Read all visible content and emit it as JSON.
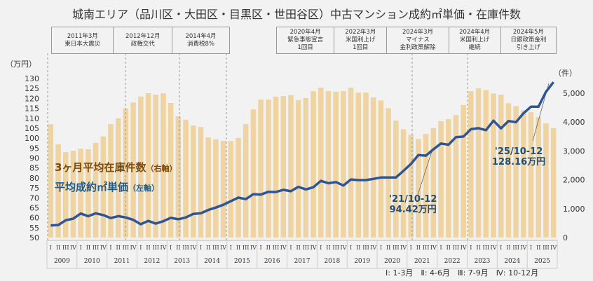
{
  "chart_data": {
    "type": "bar+line",
    "title": "城南エリア（品川区・大田区・目黒区・世田谷区）中古マンション成約㎡単価・在庫件数",
    "years": [
      "2009",
      "2010",
      "2011",
      "2012",
      "2013",
      "2014",
      "2015",
      "2016",
      "2017",
      "2018",
      "2019",
      "2020",
      "2021",
      "2022",
      "2023",
      "2024",
      "2025"
    ],
    "quarter_labels": [
      "I",
      "II",
      "III",
      "IV"
    ],
    "left_axis": {
      "unit": "（万円）",
      "ylim": [
        50,
        130
      ],
      "ticks": [
        50,
        55,
        60,
        65,
        70,
        75,
        80,
        85,
        90,
        95,
        100,
        105,
        110,
        115,
        120,
        125,
        130
      ]
    },
    "right_axis": {
      "unit": "（件）",
      "ylim": [
        0,
        5500
      ],
      "ticks": [
        "0",
        "1,000",
        "2,000",
        "3,000",
        "4,000",
        "5,000"
      ],
      "tick_values": [
        0,
        1000,
        2000,
        3000,
        4000,
        5000
      ]
    },
    "series": [
      {
        "name": "3ヶ月平均在庫件数",
        "axis_note": "（右軸）",
        "kind": "bar",
        "color": "#efd3a0",
        "values": [
          3930,
          3230,
          2960,
          3010,
          3080,
          3060,
          3280,
          3500,
          3930,
          4130,
          4470,
          4680,
          4880,
          5000,
          4950,
          5000,
          4660,
          4200,
          4080,
          3880,
          3830,
          3470,
          3400,
          3350,
          3350,
          3450,
          3930,
          4440,
          4780,
          4780,
          4880,
          4900,
          4930,
          4760,
          4830,
          5070,
          5190,
          5070,
          5050,
          5070,
          5190,
          5020,
          5020,
          4850,
          4750,
          4480,
          4050,
          3750,
          3560,
          3410,
          3590,
          3790,
          4030,
          4100,
          4240,
          4590,
          5070,
          5170,
          5110,
          4990,
          4950,
          4650,
          4550,
          4410,
          4340,
          4170,
          3950,
          3790
        ]
      },
      {
        "name": "平均成約㎡単価",
        "axis_note": "（左軸）",
        "kind": "line",
        "color": "#2f5597",
        "values": [
          56.1,
          56.3,
          58.7,
          59.5,
          62.1,
          60.7,
          62.2,
          61.3,
          59.8,
          60.8,
          60.1,
          58.9,
          56.7,
          58.4,
          57.0,
          58.2,
          59.9,
          59.2,
          60.1,
          61.9,
          62.2,
          63.9,
          65.1,
          66.5,
          68.3,
          70.1,
          69.3,
          71.8,
          71.6,
          73.0,
          72.9,
          74.0,
          73.3,
          75.5,
          74.2,
          75.3,
          78.5,
          77.3,
          77.9,
          76.2,
          79.2,
          78.9,
          78.9,
          79.5,
          80.2,
          80.2,
          80.2,
          83.5,
          87.0,
          91.5,
          91.2,
          94.42,
          97.3,
          96.7,
          100.5,
          100.8,
          104.5,
          105.0,
          104.0,
          108.8,
          104.9,
          108.6,
          108.0,
          112.5,
          115.8,
          115.8,
          123.3,
          128.16
        ]
      }
    ],
    "annotations": [
      {
        "label": "'21/10-12",
        "value": "94.42万円"
      },
      {
        "label": "'25/10-12",
        "value": "128.16万円"
      }
    ],
    "grid": false,
    "legend": "left-middle"
  },
  "events_left": [
    {
      "date": "2011年3月",
      "text": "東日本大震災"
    },
    {
      "date": "2012年12月",
      "text": "政権交代"
    }
  ],
  "events_left2": [
    {
      "date": "2014年4月",
      "text": "消費税8%"
    }
  ],
  "events_right": [
    {
      "date": "2020年4月",
      "text": "緊急事態宣言\n1回目"
    },
    {
      "date": "2022年3月",
      "text": "米国利上げ\n1回目"
    },
    {
      "date": "2024年3月",
      "text": "マイナス\n金利政策解除"
    },
    {
      "date": "2024年4月",
      "text": "米国利上げ\n継続"
    },
    {
      "date": "2024年5月",
      "text": "日銀政策金利\n引き上げ"
    }
  ],
  "footnote": "Ⅰ: 1-3月　Ⅱ: 4-6月　Ⅲ: 7-9月　Ⅳ: 10-12月"
}
